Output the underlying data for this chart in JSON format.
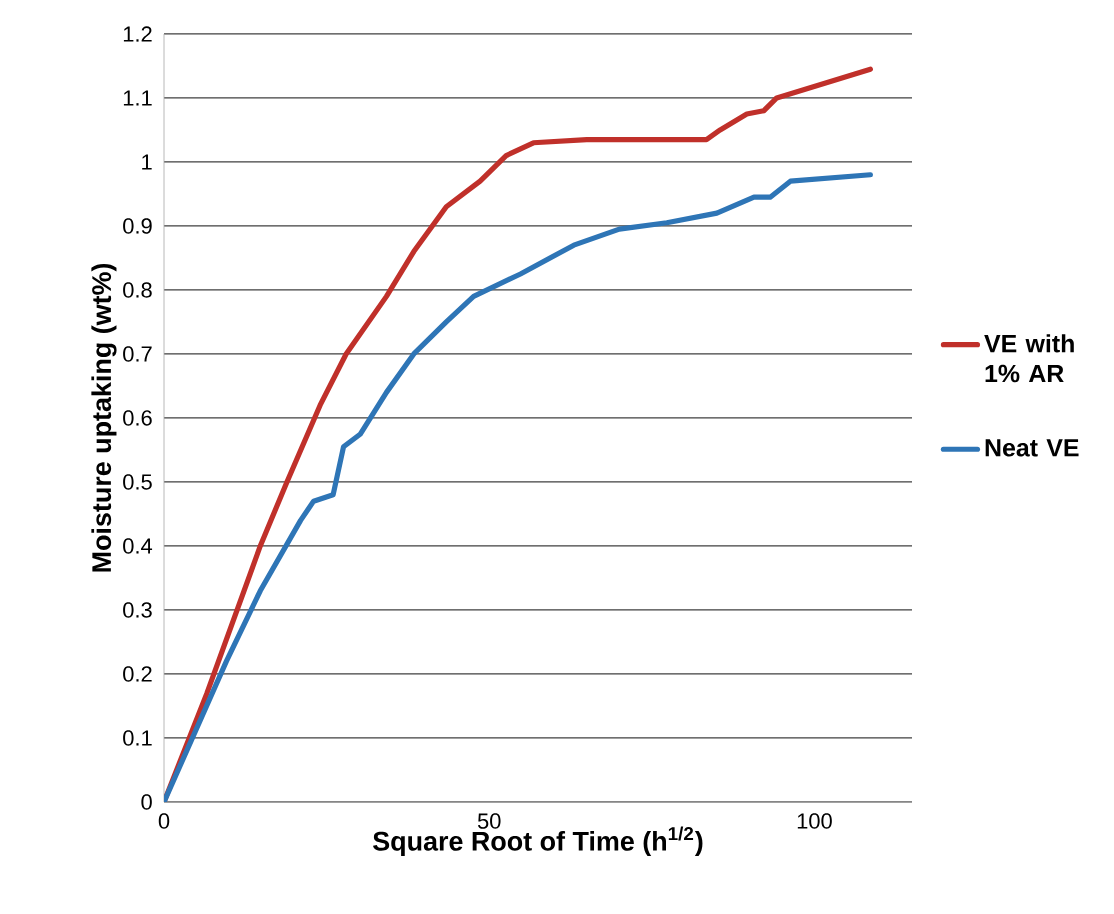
{
  "chart_data": {
    "type": "line",
    "xlabel": "Square Root of Time (h$^{1/2}$)",
    "ylabel": "Moisture uptaking (wt%)",
    "xlim": [
      0,
      115
    ],
    "xticks": [
      0,
      50,
      100
    ],
    "ylim": [
      0,
      1.2
    ],
    "yticks": [
      0,
      0.1,
      0.2,
      0.3,
      0.4,
      0.5,
      0.6,
      0.7,
      0.8,
      0.9,
      1,
      1.1,
      1.2
    ],
    "grid": "y",
    "legend": "right",
    "line_style": "solid",
    "marker": "none",
    "series": [
      {
        "name": "VE with 1% AR",
        "color": "#c0302a",
        "x": [
          0,
          6.6,
          14.8,
          18.9,
          24,
          28,
          34.2,
          38.4,
          43.4,
          48.6,
          52.6,
          56.8,
          65,
          83.4,
          85.5,
          89.6,
          92.2,
          94.2,
          108.6
        ],
        "values": [
          0,
          0.17,
          0.4,
          0.5,
          0.62,
          0.7,
          0.79,
          0.86,
          0.93,
          0.97,
          1.01,
          1.03,
          1.035,
          1.035,
          1.05,
          1.075,
          1.08,
          1.1,
          1.145
        ]
      },
      {
        "name": "Neat VE",
        "color": "#2e75b6",
        "x": [
          0,
          9.6,
          14.8,
          21,
          23,
          26,
          27.6,
          30.2,
          34.2,
          38.4,
          43.4,
          47.6,
          54.8,
          63,
          70,
          77.3,
          85,
          90.7,
          93.2,
          96.3,
          108.6
        ],
        "values": [
          0,
          0.22,
          0.33,
          0.44,
          0.47,
          0.48,
          0.555,
          0.575,
          0.64,
          0.7,
          0.75,
          0.79,
          0.825,
          0.87,
          0.895,
          0.905,
          0.92,
          0.945,
          0.945,
          0.97,
          0.98
        ]
      }
    ]
  }
}
